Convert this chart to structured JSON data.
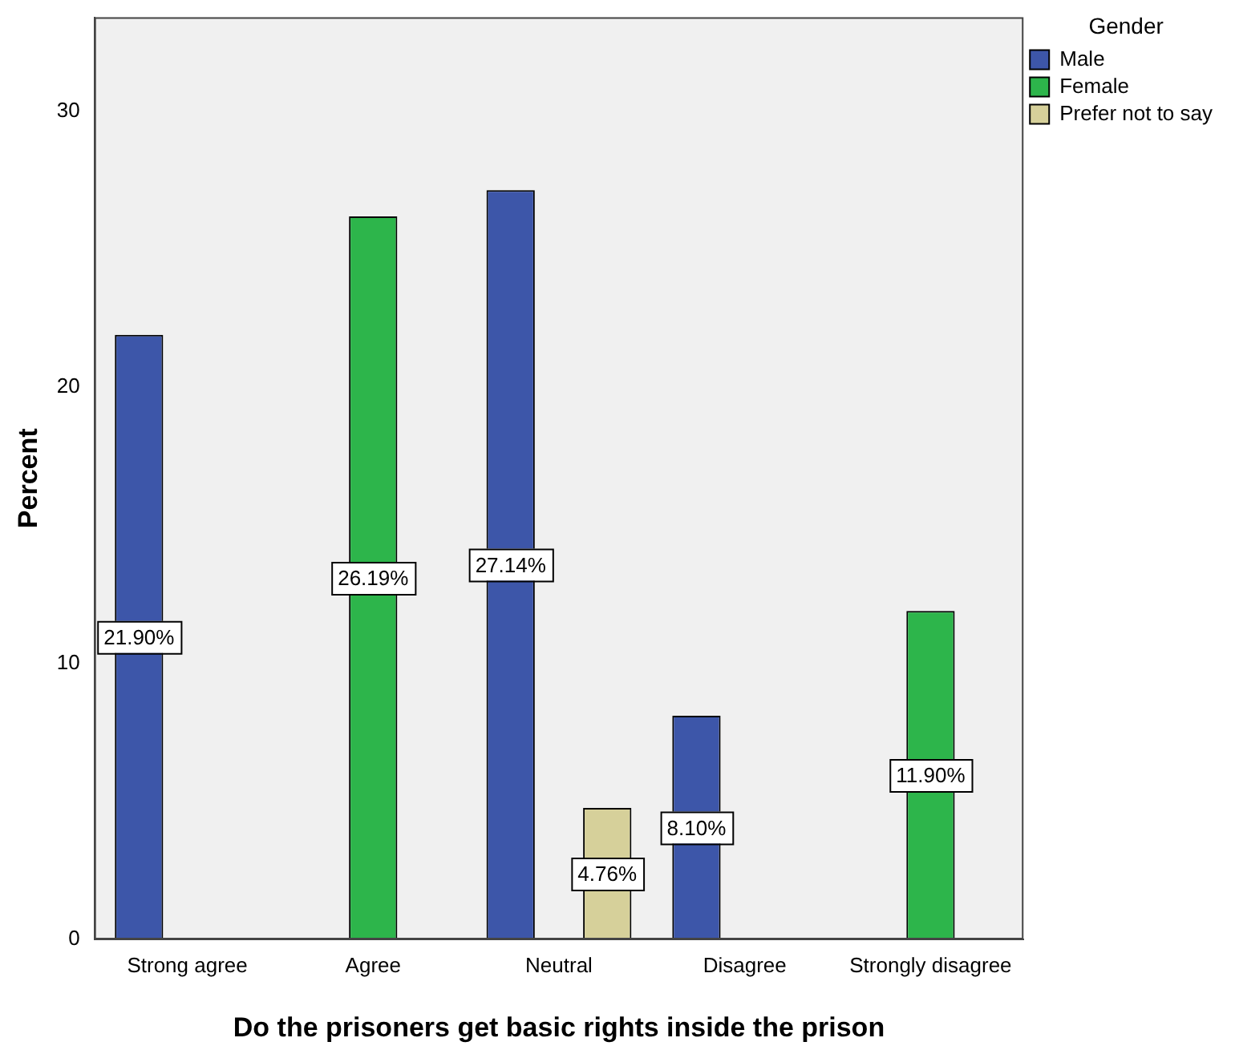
{
  "chart_data": {
    "type": "bar",
    "xlabel": "Do the prisoners get basic rights inside the prison",
    "ylabel": "Percent",
    "legend_title": "Gender",
    "categories": [
      "Strong agree",
      "Agree",
      "Neutral",
      "Disagree",
      "Strongly disagree"
    ],
    "series": [
      {
        "name": "Male",
        "color": "#3d56a9",
        "values": [
          21.9,
          null,
          27.14,
          8.1,
          null
        ],
        "value_labels": [
          "21.90%",
          null,
          "27.14%",
          "8.10%",
          null
        ]
      },
      {
        "name": "Female",
        "color": "#2db54b",
        "values": [
          null,
          26.19,
          null,
          null,
          11.9
        ],
        "value_labels": [
          null,
          "26.19%",
          null,
          null,
          "11.90%"
        ]
      },
      {
        "name": "Prefer not to say",
        "color": "#d6d09a",
        "values": [
          null,
          null,
          4.76,
          null,
          null
        ],
        "value_labels": [
          null,
          null,
          "4.76%",
          null,
          null
        ]
      }
    ],
    "ylim": [
      0,
      33.4
    ],
    "yticks": [
      0,
      10,
      20,
      30
    ],
    "grid": false,
    "legend": "top right"
  }
}
